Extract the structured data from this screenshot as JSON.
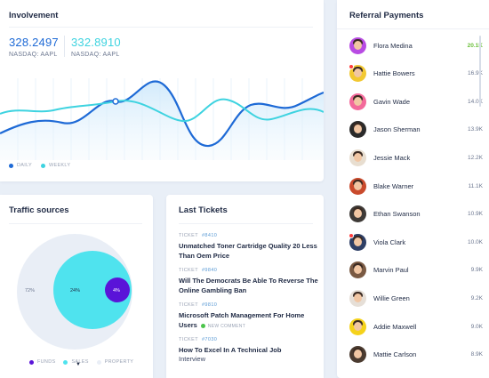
{
  "involvement": {
    "title": "Involvement",
    "stats": [
      {
        "value": "328.2497",
        "label": "NASDAQ: AAPL",
        "color": "#1e6ad6"
      },
      {
        "value": "332.8910",
        "label": "NASDAQ: AAPL",
        "color": "#3ed3e0"
      }
    ],
    "legend": [
      {
        "label": "DAILY",
        "color": "#1e6ad6"
      },
      {
        "label": "WEEKLY",
        "color": "#3ed3e0"
      }
    ]
  },
  "traffic": {
    "title": "Traffic sources",
    "labels": {
      "property_pct": "72%",
      "sales_pct": "24%",
      "funds_pct": "4%"
    },
    "legend": [
      {
        "label": "FUNDS",
        "color": "#5a14d8"
      },
      {
        "label": "SALES",
        "color": "#4fe3ee"
      },
      {
        "label": "PROPERTY",
        "color": "#e9eef6"
      }
    ]
  },
  "tickets": {
    "title": "Last Tickets",
    "items": [
      {
        "prefix": "TICKET",
        "id": "#8410",
        "title": "Unmatched Toner Cartridge Quality 20 Less Than Oem Price",
        "badge": ""
      },
      {
        "prefix": "TICKET",
        "id": "#9840",
        "title": "Will The Democrats Be Able To Reverse The Online Gambling Ban",
        "badge": ""
      },
      {
        "prefix": "TICKET",
        "id": "#9810",
        "title": "Microsoft Patch Management For Home Users",
        "badge": "NEW COMMENT"
      },
      {
        "prefix": "TICKET",
        "id": "#7030",
        "title": "How To Excel In A Technical Job",
        "sub": "Interview",
        "badge": ""
      }
    ]
  },
  "referral": {
    "title": "Referral Payments",
    "items": [
      {
        "name": "Flora Medina",
        "value": "20.1K",
        "highlight": true,
        "bg": "#b84be3",
        "notif": false
      },
      {
        "name": "Hattie Bowers",
        "value": "16.9K",
        "highlight": false,
        "bg": "#f2c832",
        "notif": true
      },
      {
        "name": "Gavin Wade",
        "value": "14.0K",
        "highlight": false,
        "bg": "#f36a9b",
        "notif": false
      },
      {
        "name": "Jason Sherman",
        "value": "13.9K",
        "highlight": false,
        "bg": "#2a2a2a",
        "notif": false
      },
      {
        "name": "Jessie Mack",
        "value": "12.2K",
        "highlight": false,
        "bg": "#e8ded0",
        "notif": false
      },
      {
        "name": "Blake Warner",
        "value": "11.1K",
        "highlight": false,
        "bg": "#c94a2c",
        "notif": false
      },
      {
        "name": "Ethan Swanson",
        "value": "10.9K",
        "highlight": false,
        "bg": "#3e3a37",
        "notif": false
      },
      {
        "name": "Viola Clark",
        "value": "10.0K",
        "highlight": false,
        "bg": "#2e3f66",
        "notif": true
      },
      {
        "name": "Marvin Paul",
        "value": "9.9K",
        "highlight": false,
        "bg": "#7a5a43",
        "notif": false
      },
      {
        "name": "Willie Green",
        "value": "9.2K",
        "highlight": false,
        "bg": "#e6dfd7",
        "notif": false
      },
      {
        "name": "Addie Maxwell",
        "value": "9.0K",
        "highlight": false,
        "bg": "#f5d21b",
        "notif": false
      },
      {
        "name": "Mattie Carlson",
        "value": "8.9K",
        "highlight": false,
        "bg": "#4b3b30",
        "notif": false
      }
    ]
  }
}
